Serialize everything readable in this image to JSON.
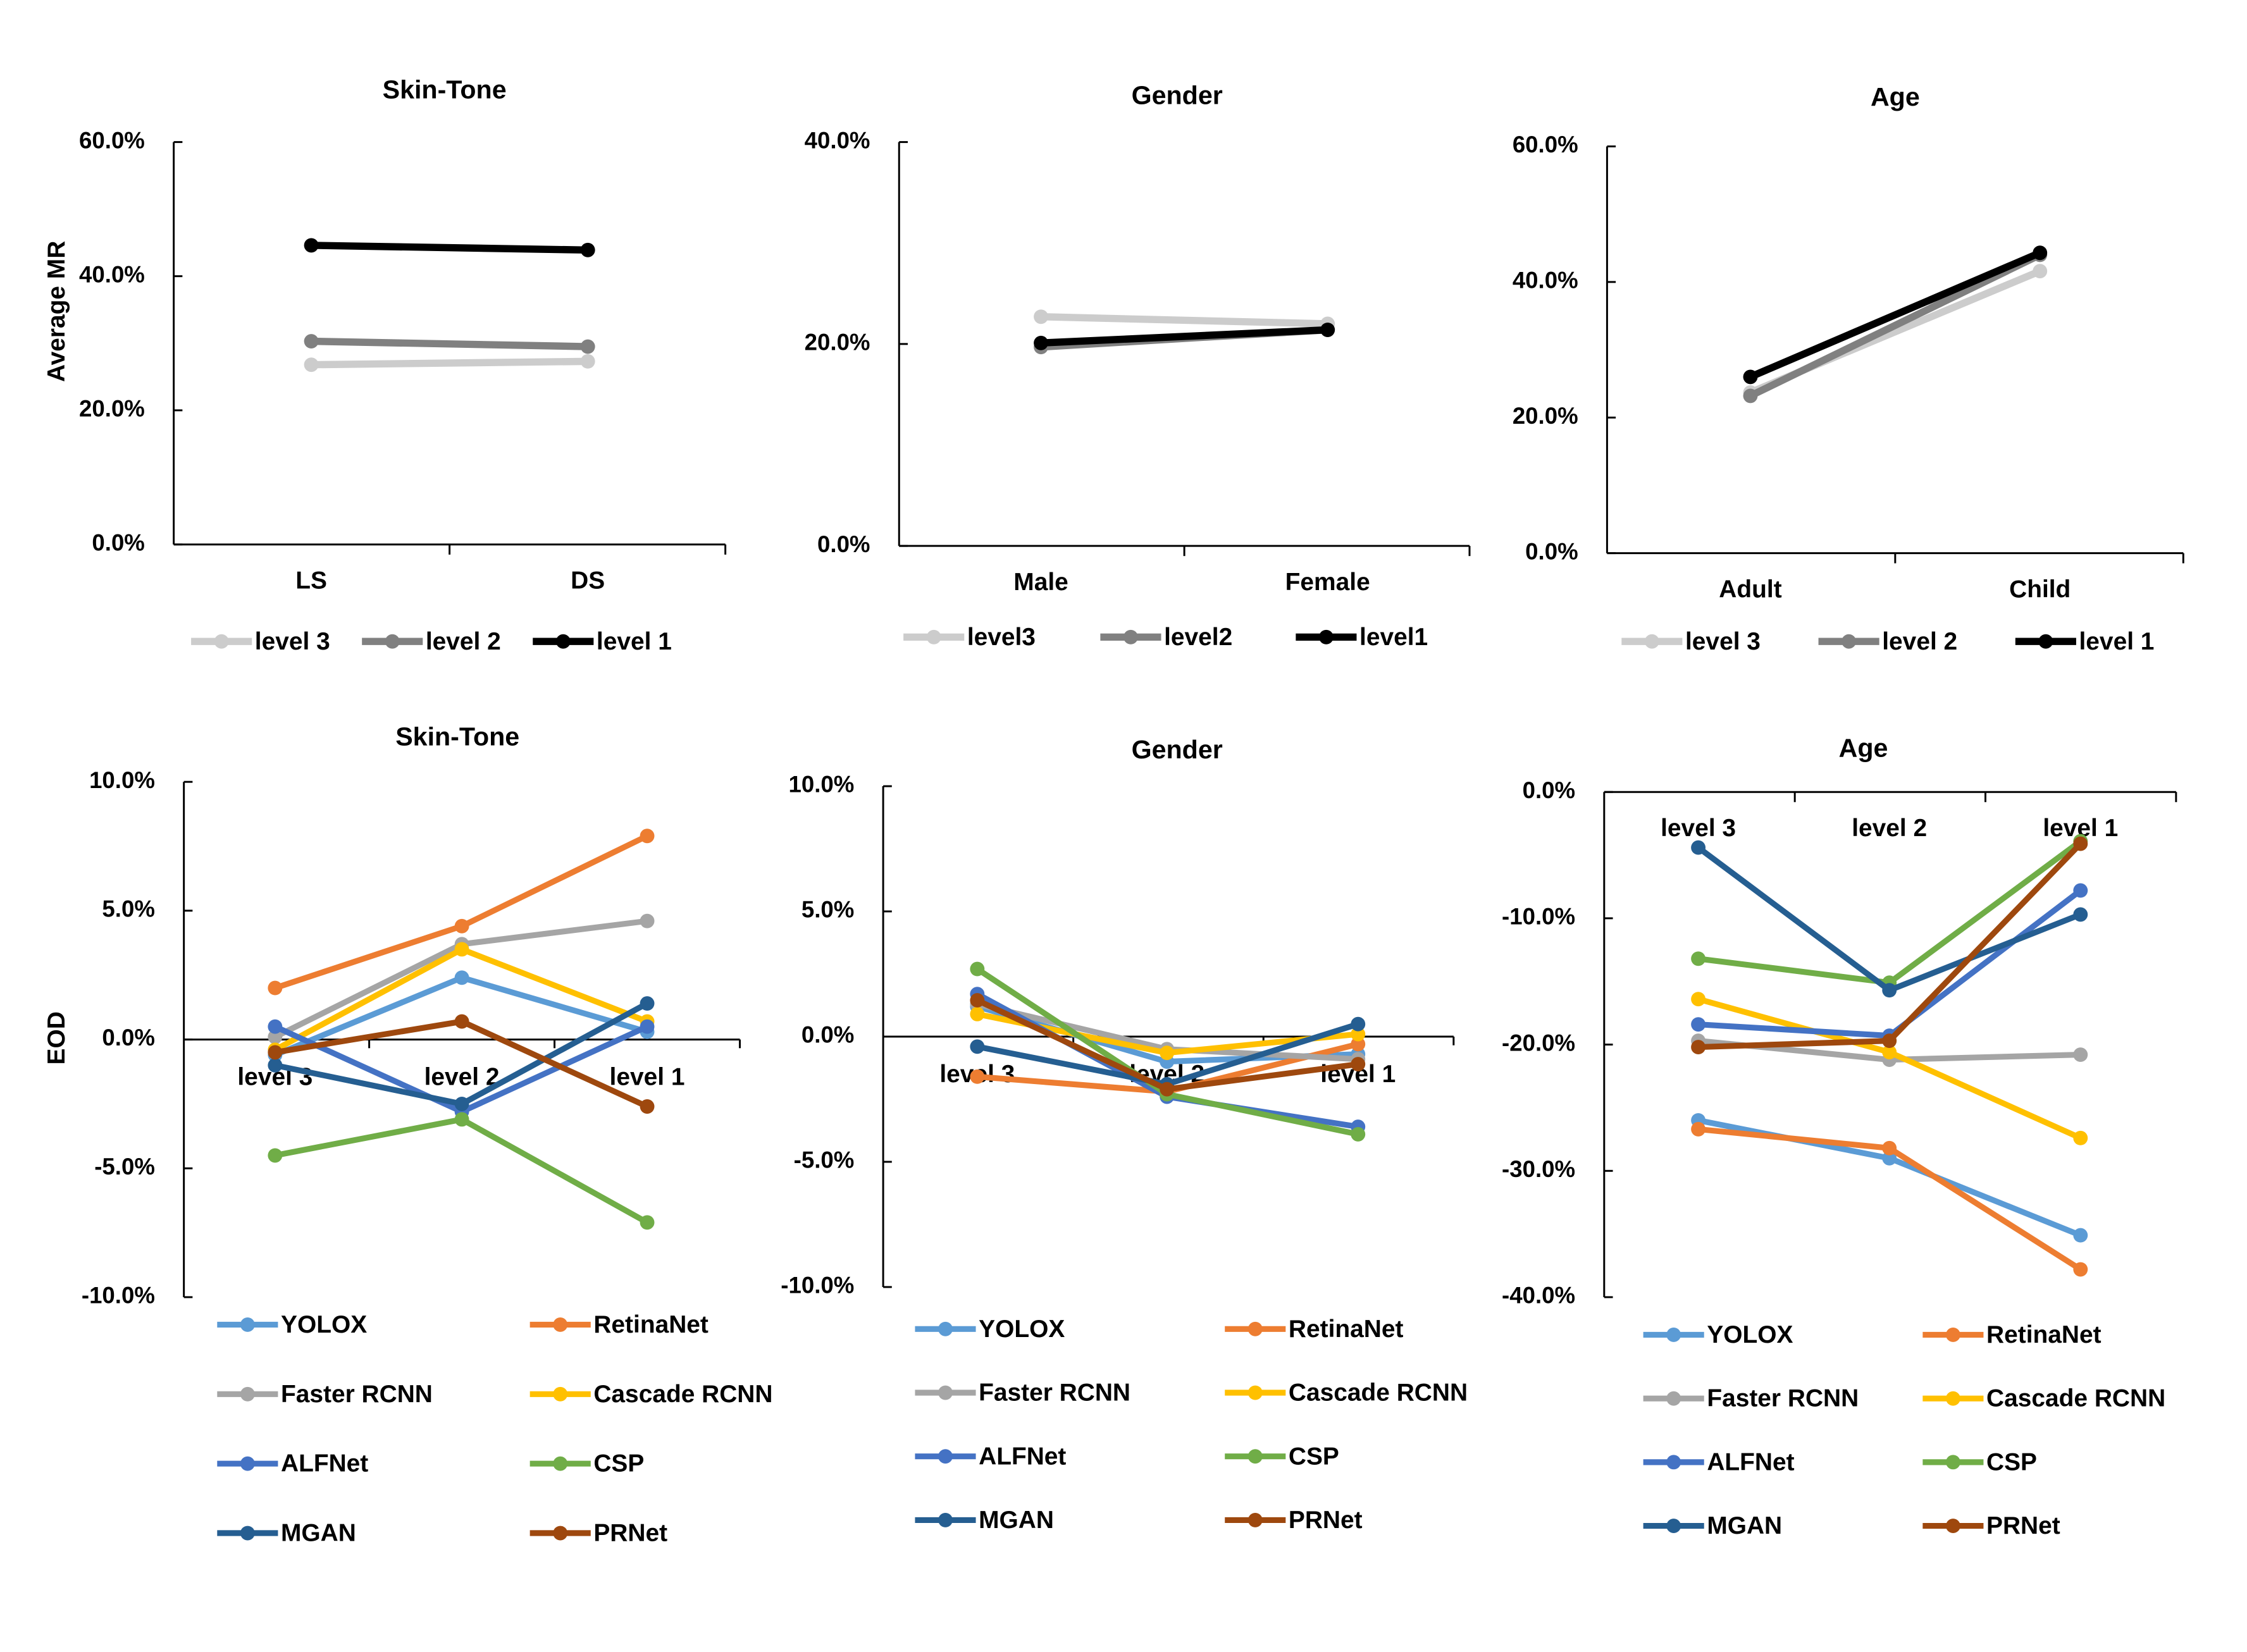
{
  "chart_data": [
    {
      "type": "line",
      "title": "Skin-Tone",
      "ylabel": "Average MR",
      "categories": [
        "LS",
        "DS"
      ],
      "yticks": [
        "0.0%",
        "20.0%",
        "40.0%",
        "60.0%"
      ],
      "ylim": [
        0,
        60
      ],
      "legend": "bottom",
      "series": [
        {
          "name": "level 3",
          "color": "#cccccc",
          "values": [
            26.8,
            27.3
          ]
        },
        {
          "name": "level 2",
          "color": "#808080",
          "values": [
            30.3,
            29.5
          ]
        },
        {
          "name": "level 1",
          "color": "#000000",
          "values": [
            44.6,
            43.9
          ]
        }
      ]
    },
    {
      "type": "line",
      "title": "Gender",
      "ylabel": "",
      "categories": [
        "Male",
        "Female"
      ],
      "yticks": [
        "0.0%",
        "20.0%",
        "40.0%"
      ],
      "ylim": [
        0,
        40
      ],
      "legend": "bottom",
      "series": [
        {
          "name": "level3",
          "color": "#cccccc",
          "values": [
            22.7,
            22.0
          ]
        },
        {
          "name": "level2",
          "color": "#808080",
          "values": [
            19.7,
            21.4
          ]
        },
        {
          "name": "level1",
          "color": "#000000",
          "values": [
            20.1,
            21.4
          ]
        }
      ]
    },
    {
      "type": "line",
      "title": "Age",
      "ylabel": "",
      "categories": [
        "Adult",
        "Child"
      ],
      "yticks": [
        "0.0%",
        "20.0%",
        "40.0%",
        "60.0%"
      ],
      "ylim": [
        0,
        60
      ],
      "legend": "bottom",
      "series": [
        {
          "name": "level 3",
          "color": "#cccccc",
          "values": [
            23.7,
            41.6
          ]
        },
        {
          "name": "level 2",
          "color": "#808080",
          "values": [
            23.2,
            44.0
          ]
        },
        {
          "name": "level 1",
          "color": "#000000",
          "values": [
            26.0,
            44.3
          ]
        }
      ]
    },
    {
      "type": "line",
      "title": "Skin-Tone",
      "ylabel": "EOD",
      "categories": [
        "level 3",
        "level 2",
        "level 1"
      ],
      "yticks": [
        "-10.0%",
        "-5.0%",
        "0.0%",
        "5.0%",
        "10.0%"
      ],
      "ylim": [
        -10,
        10
      ],
      "legend": "bottom",
      "series": [
        {
          "name": "YOLOX",
          "color": "#5B9BD5",
          "values": [
            -0.6,
            2.4,
            0.3
          ]
        },
        {
          "name": "RetinaNet",
          "color": "#ED7D31",
          "values": [
            2.0,
            4.4,
            7.9
          ]
        },
        {
          "name": "Faster RCNN",
          "color": "#A5A5A5",
          "values": [
            0.1,
            3.7,
            4.6
          ]
        },
        {
          "name": "Cascade RCNN",
          "color": "#FFC000",
          "values": [
            -0.4,
            3.5,
            0.7
          ]
        },
        {
          "name": "ALFNet",
          "color": "#4472C4",
          "values": [
            0.5,
            -2.8,
            0.5
          ]
        },
        {
          "name": "CSP",
          "color": "#70AD47",
          "values": [
            -4.5,
            -3.1,
            -7.1
          ]
        },
        {
          "name": "MGAN",
          "color": "#255E91",
          "values": [
            -1.0,
            -2.5,
            1.4
          ]
        },
        {
          "name": "PRNet",
          "color": "#9E480E",
          "values": [
            -0.5,
            0.7,
            -2.6
          ]
        }
      ]
    },
    {
      "type": "line",
      "title": "Gender",
      "ylabel": "",
      "categories": [
        "level 3",
        "level 2",
        "level 1"
      ],
      "yticks": [
        "-10.0%",
        "-5.0%",
        "0.0%",
        "5.0%",
        "10.0%"
      ],
      "ylim": [
        -10,
        10
      ],
      "legend": "bottom",
      "series": [
        {
          "name": "YOLOX",
          "color": "#5B9BD5",
          "values": [
            1.2,
            -1.0,
            -0.7
          ]
        },
        {
          "name": "RetinaNet",
          "color": "#ED7D31",
          "values": [
            -1.6,
            -2.2,
            -0.3
          ]
        },
        {
          "name": "Faster RCNN",
          "color": "#A5A5A5",
          "values": [
            1.3,
            -0.5,
            -0.9
          ]
        },
        {
          "name": "Cascade RCNN",
          "color": "#FFC000",
          "values": [
            0.9,
            -0.65,
            0.1
          ]
        },
        {
          "name": "ALFNet",
          "color": "#4472C4",
          "values": [
            1.7,
            -2.4,
            -3.6
          ]
        },
        {
          "name": "CSP",
          "color": "#70AD47",
          "values": [
            2.7,
            -2.3,
            -3.9
          ]
        },
        {
          "name": "MGAN",
          "color": "#255E91",
          "values": [
            -0.4,
            -1.9,
            0.5
          ]
        },
        {
          "name": "PRNet",
          "color": "#9E480E",
          "values": [
            1.45,
            -2.1,
            -1.1
          ]
        }
      ]
    },
    {
      "type": "line",
      "title": "Age",
      "ylabel": "",
      "categories": [
        "level 3",
        "level 2",
        "level 1"
      ],
      "yticks": [
        "-40.0%",
        "-30.0%",
        "-20.0%",
        "-10.0%",
        "0.0%"
      ],
      "ylim": [
        -40,
        0
      ],
      "legend": "bottom",
      "series": [
        {
          "name": "YOLOX",
          "color": "#5B9BD5",
          "values": [
            -26.0,
            -29.0,
            -35.1
          ]
        },
        {
          "name": "RetinaNet",
          "color": "#ED7D31",
          "values": [
            -26.7,
            -28.2,
            -37.8
          ]
        },
        {
          "name": "Faster RCNN",
          "color": "#A5A5A5",
          "values": [
            -19.7,
            -21.2,
            -20.8
          ]
        },
        {
          "name": "Cascade RCNN",
          "color": "#FFC000",
          "values": [
            -16.4,
            -20.6,
            -27.4
          ]
        },
        {
          "name": "ALFNet",
          "color": "#4472C4",
          "values": [
            -18.4,
            -19.3,
            -7.8
          ]
        },
        {
          "name": "CSP",
          "color": "#70AD47",
          "values": [
            -13.2,
            -15.1,
            -3.9
          ]
        },
        {
          "name": "MGAN",
          "color": "#255E91",
          "values": [
            -4.4,
            -15.7,
            -9.7
          ]
        },
        {
          "name": "PRNet",
          "color": "#9E480E",
          "values": [
            -20.2,
            -19.7,
            -4.1
          ]
        }
      ]
    }
  ]
}
